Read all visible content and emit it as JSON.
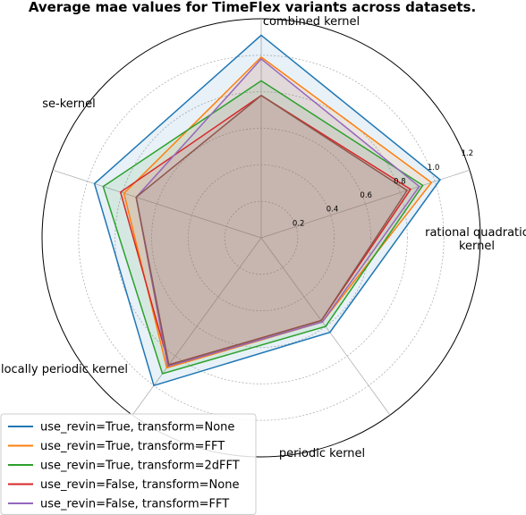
{
  "chart_data": {
    "type": "radar",
    "title": "Average mae values for TimeFlex variants across datasets.",
    "axes": [
      "combined kernel",
      "rational quadratic kernel",
      "periodic kernel",
      "locally periodic kernel",
      "se-kernel"
    ],
    "axis_display": [
      [
        "combined kernel"
      ],
      [
        "rational quadratic",
        "kernel"
      ],
      [
        "periodic kernel"
      ],
      [
        "locally periodic kernel"
      ],
      [
        "se-kernel"
      ]
    ],
    "rlim": [
      0,
      1.2
    ],
    "rticks": [
      0.2,
      0.4,
      0.6,
      0.8,
      1.0,
      1.2
    ],
    "rtick_labels": [
      "0.2",
      "0.4",
      "0.6",
      "0.8",
      "1.0",
      "1.2"
    ],
    "grid": true,
    "legend_position": "lower-left",
    "series": [
      {
        "name": "use_revin=True, transform=None",
        "color": "#1f77b4",
        "values": [
          1.11,
          1.03,
          0.64,
          1.0,
          0.96
        ]
      },
      {
        "name": "use_revin=True, transform=FFT",
        "color": "#ff7f0e",
        "values": [
          0.99,
          0.98,
          0.57,
          0.88,
          0.79
        ]
      },
      {
        "name": "use_revin=True, transform=2dFFT",
        "color": "#2ca02c",
        "values": [
          0.86,
          0.93,
          0.6,
          0.92,
          0.91
        ]
      },
      {
        "name": "use_revin=False, transform=None",
        "color": "#d62728",
        "values": [
          0.78,
          0.86,
          0.56,
          0.86,
          0.81
        ]
      },
      {
        "name": "use_revin=False, transform=FFT",
        "color": "#9467bd",
        "values": [
          0.98,
          0.91,
          0.57,
          0.87,
          0.72
        ]
      },
      {
        "name": "",
        "color": "#8c564b",
        "values": [
          0.78,
          0.84,
          0.56,
          0.86,
          0.72
        ]
      }
    ]
  }
}
